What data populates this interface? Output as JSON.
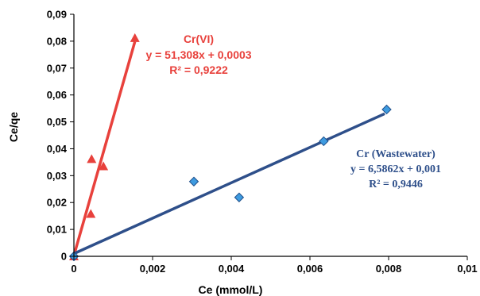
{
  "chart_data": {
    "type": "scatter",
    "xlabel": "Ce  (mmol/L)",
    "ylabel": "Ce/qe",
    "xlim": [
      0,
      0.01
    ],
    "ylim": [
      0,
      0.09
    ],
    "x_ticks": [
      "0",
      "0,002",
      "0,004",
      "0,006",
      "0,008",
      "0,01"
    ],
    "y_ticks": [
      "0",
      "0,01",
      "0,02",
      "0,03",
      "0,04",
      "0,05",
      "0,06",
      "0,07",
      "0,08",
      "0,09"
    ],
    "grid": false,
    "series": [
      {
        "name": "Cr(VI)",
        "marker": "triangle",
        "color": "#e8413c",
        "points": [
          {
            "x": 0.0,
            "y": 0.0
          },
          {
            "x": 0.00043,
            "y": 0.0158
          },
          {
            "x": 0.00045,
            "y": 0.0362
          },
          {
            "x": 0.00075,
            "y": 0.0335
          },
          {
            "x": 0.00155,
            "y": 0.0812
          }
        ],
        "trendline": {
          "slope": 51.308,
          "intercept": 0.0003,
          "x_range": [
            0,
            0.00155
          ]
        },
        "annotation": [
          "Cr(VI)",
          "y = 51,308x + 0,0003",
          "R² = 0,9222"
        ]
      },
      {
        "name": "Cr (Wastewater)",
        "marker": "diamond",
        "color": "#3e9be0",
        "line_color": "#2e4f8a",
        "points": [
          {
            "x": 0.0,
            "y": 0.0
          },
          {
            "x": 0.00305,
            "y": 0.0278
          },
          {
            "x": 0.0042,
            "y": 0.0219
          },
          {
            "x": 0.00635,
            "y": 0.0428
          },
          {
            "x": 0.00795,
            "y": 0.0546
          }
        ],
        "trendline": {
          "slope": 6.5862,
          "intercept": 0.001,
          "x_range": [
            0,
            0.0079
          ]
        },
        "annotation": [
          "Cr (Wastewater)",
          "y = 6,5862x + 0,001",
          "R² = 0,9446"
        ]
      }
    ]
  }
}
